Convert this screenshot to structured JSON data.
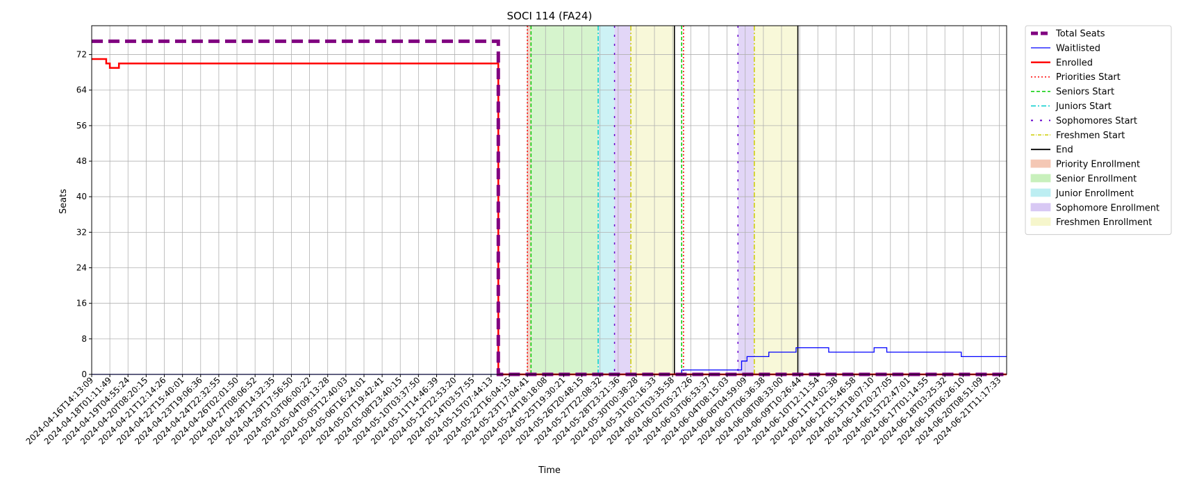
{
  "chart_data": {
    "type": "line",
    "title": "SOCI 114 (FA24)",
    "xlabel": "Time",
    "ylabel": "Seats",
    "ylim": [
      0,
      78.5
    ],
    "yticks": [
      0,
      8,
      16,
      24,
      32,
      40,
      48,
      56,
      64,
      72
    ],
    "grid": true,
    "legend_placement": "outside-right",
    "x_tick_labels": [
      "2024-04-16T14:13:09",
      "2024-04-18T01:11:49",
      "2024-04-19T04:55:24",
      "2024-04-20T08:20:15",
      "2024-04-21T12:14:26",
      "2024-04-22T15:40:01",
      "2024-04-23T19:06:36",
      "2024-04-24T22:32:55",
      "2024-04-26T02:01:50",
      "2024-04-27T08:06:52",
      "2024-04-28T14:32:35",
      "2024-04-29T17:56:50",
      "2024-05-03T06:00:22",
      "2024-05-04T09:13:28",
      "2024-05-05T12:40:03",
      "2024-05-06T16:24:01",
      "2024-05-07T19:42:41",
      "2024-05-08T23:40:15",
      "2024-05-10T03:37:50",
      "2024-05-11T14:46:39",
      "2024-05-12T22:53:20",
      "2024-05-14T03:57:55",
      "2024-05-15T07:44:13",
      "2024-05-22T16:04:15",
      "2024-05-23T17:04:41",
      "2024-05-24T18:18:08",
      "2024-05-25T19:30:21",
      "2024-05-26T20:48:15",
      "2024-05-27T22:08:32",
      "2024-05-28T23:21:36",
      "2024-05-30T00:38:28",
      "2024-05-31T02:16:33",
      "2024-06-01T03:35:58",
      "2024-06-02T05:27:26",
      "2024-06-03T06:53:37",
      "2024-06-04T08:15:03",
      "2024-06-06T04:59:09",
      "2024-06-07T06:36:38",
      "2024-06-08T08:33:00",
      "2024-06-09T10:26:44",
      "2024-06-10T12:11:54",
      "2024-06-11T14:02:38",
      "2024-06-12T15:46:58",
      "2024-06-13T18:07:10",
      "2024-06-14T20:27:05",
      "2024-06-15T22:47:01",
      "2024-06-17T01:14:55",
      "2024-06-18T03:25:32",
      "2024-06-19T06:26:10",
      "2024-06-20T08:51:09",
      "2024-06-21T11:17:33"
    ],
    "x_range_index": [
      0,
      50.4
    ],
    "series": [
      {
        "name": "Total Seats",
        "color": "#800080",
        "style": "dashed-thick",
        "points": [
          [
            0,
            75
          ],
          [
            22.4,
            75
          ],
          [
            22.4,
            72
          ],
          [
            22.4,
            0
          ],
          [
            50.4,
            0
          ]
        ]
      },
      {
        "name": "Waitlisted",
        "color": "#0000ff",
        "style": "solid-thin",
        "points": [
          [
            0,
            0
          ],
          [
            32.5,
            0
          ],
          [
            32.5,
            1
          ],
          [
            35.8,
            1
          ],
          [
            35.8,
            3
          ],
          [
            36.1,
            3
          ],
          [
            36.1,
            4
          ],
          [
            37.3,
            4
          ],
          [
            37.3,
            5
          ],
          [
            38.8,
            5
          ],
          [
            38.8,
            6
          ],
          [
            40.6,
            6
          ],
          [
            40.6,
            5
          ],
          [
            43.1,
            5
          ],
          [
            43.1,
            6
          ],
          [
            43.8,
            6
          ],
          [
            43.8,
            5
          ],
          [
            47.9,
            5
          ],
          [
            47.9,
            4
          ],
          [
            50.4,
            4
          ]
        ]
      },
      {
        "name": "Enrolled",
        "color": "#ff0000",
        "style": "solid-thick",
        "points": [
          [
            0,
            71
          ],
          [
            0.8,
            71
          ],
          [
            0.8,
            70
          ],
          [
            1,
            70
          ],
          [
            1,
            69
          ],
          [
            1.5,
            69
          ],
          [
            1.5,
            70
          ],
          [
            22.4,
            70
          ],
          [
            22.4,
            0
          ],
          [
            50.4,
            0
          ]
        ]
      }
    ],
    "vertical_lines": [
      {
        "name": "Priorities Start",
        "color": "#ff0000",
        "style": "dotted",
        "x": [
          24.0,
          32.6
        ]
      },
      {
        "name": "Seniors Start",
        "color": "#00cc00",
        "style": "dashed",
        "x": [
          24.2,
          32.5
        ]
      },
      {
        "name": "Juniors Start",
        "color": "#00cccc",
        "style": "dashdot",
        "x": [
          27.9
        ]
      },
      {
        "name": "Sophomores Start",
        "color": "#6600cc",
        "style": "sparse-dash",
        "x": [
          28.8,
          35.6
        ]
      },
      {
        "name": "Freshmen Start",
        "color": "#cccc00",
        "style": "dashdot",
        "x": [
          29.7,
          36.5
        ]
      },
      {
        "name": "End",
        "color": "#000000",
        "style": "solid",
        "x": [
          32.1,
          38.9
        ]
      }
    ],
    "shaded_regions": [
      {
        "name": "Priority Enrollment",
        "color": "#f4c7b4",
        "spans": [
          [
            24.0,
            24.2
          ]
        ]
      },
      {
        "name": "Senior Enrollment",
        "color": "#c8f0bc",
        "spans": [
          [
            24.2,
            27.9
          ]
        ]
      },
      {
        "name": "Junior Enrollment",
        "color": "#bceef2",
        "spans": [
          [
            27.9,
            28.8
          ]
        ]
      },
      {
        "name": "Sophomore Enrollment",
        "color": "#d8c8f4",
        "spans": [
          [
            28.8,
            29.7
          ],
          [
            35.6,
            36.5
          ]
        ]
      },
      {
        "name": "Freshmen Enrollment",
        "color": "#f6f6cc",
        "spans": [
          [
            29.7,
            32.1
          ],
          [
            36.5,
            38.9
          ]
        ]
      }
    ],
    "legend": [
      {
        "label": "Total Seats",
        "kind": "line",
        "color": "#800080",
        "dash": "10,4",
        "width": 5
      },
      {
        "label": "Waitlisted",
        "kind": "line",
        "color": "#0000ff",
        "dash": "",
        "width": 1.3
      },
      {
        "label": "Enrolled",
        "kind": "line",
        "color": "#ff0000",
        "dash": "",
        "width": 2.5
      },
      {
        "label": "Priorities Start",
        "kind": "line",
        "color": "#ff0000",
        "dash": "2,3",
        "width": 1.5
      },
      {
        "label": "Seniors Start",
        "kind": "line",
        "color": "#00cc00",
        "dash": "5,3",
        "width": 1.5
      },
      {
        "label": "Juniors Start",
        "kind": "line",
        "color": "#00cccc",
        "dash": "7,3,2,3",
        "width": 1.5
      },
      {
        "label": "Sophomores Start",
        "kind": "line",
        "color": "#6600cc",
        "dash": "3,10",
        "width": 2
      },
      {
        "label": "Freshmen Start",
        "kind": "line",
        "color": "#cccc00",
        "dash": "5,2,1,2",
        "width": 1.5
      },
      {
        "label": "End",
        "kind": "line",
        "color": "#000000",
        "dash": "",
        "width": 1.8
      },
      {
        "label": "Priority Enrollment",
        "kind": "patch",
        "color": "#f4c7b4"
      },
      {
        "label": "Senior Enrollment",
        "kind": "patch",
        "color": "#c8f0bc"
      },
      {
        "label": "Junior Enrollment",
        "kind": "patch",
        "color": "#bceef2"
      },
      {
        "label": "Sophomore Enrollment",
        "kind": "patch",
        "color": "#d8c8f4"
      },
      {
        "label": "Freshmen Enrollment",
        "kind": "patch",
        "color": "#f6f6cc"
      }
    ]
  }
}
